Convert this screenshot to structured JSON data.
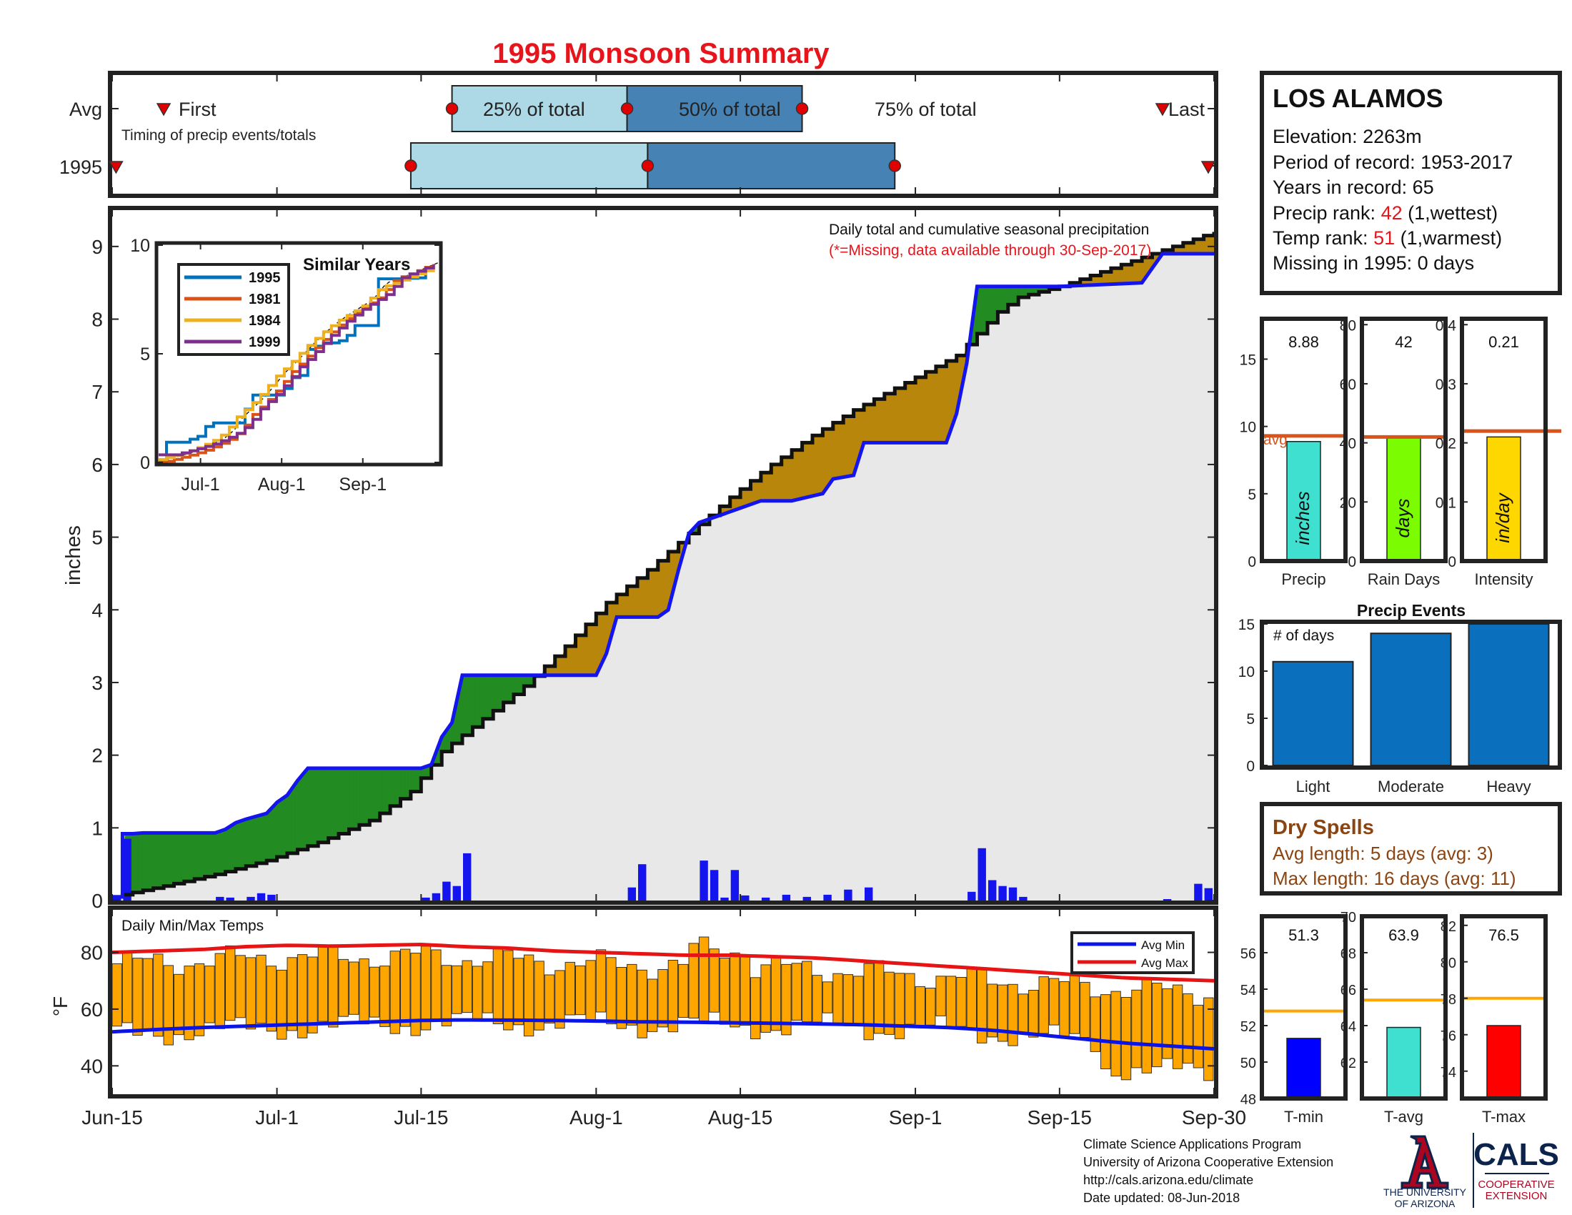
{
  "title": "1995 Monsoon Summary",
  "colors": {
    "title": "#e8141c",
    "precip_blue": "#1414ee",
    "green_fill": "#228b22",
    "brown_fill": "#b8860b",
    "gray_fill": "#e8e8e8",
    "light_box": "#add8e6",
    "dark_box": "#4682b4",
    "marker": "#e00000",
    "avg_line": "#d9541a",
    "temp_bar": "#ffa500",
    "avg_min": "#0a14e6",
    "avg_max": "#e61414",
    "bar_blue": "#0a6fbd"
  },
  "timing": {
    "row_avg": "Avg",
    "row_year": "1995",
    "first": "First",
    "last": "Last",
    "p25": "25% of total",
    "p50": "50% of total",
    "p75": "75% of total",
    "subtitle": "Timing of precip events/totals",
    "avg_first_day": 5,
    "avg_last_day": 102,
    "avg_q": [
      33,
      50,
      67
    ],
    "yr_first_day": 1,
    "yr_last_day": 107,
    "yr_q": [
      29,
      52,
      76
    ]
  },
  "station": {
    "name": "LOS ALAMOS",
    "elevation": "Elevation: 2263m",
    "period": "Period of record: 1953-2017",
    "years": "Years in record: 65",
    "precip_rank_label": "Precip rank: ",
    "precip_rank_value": "42",
    "precip_rank_note": " (1,wettest)",
    "temp_rank_label": "Temp rank: ",
    "temp_rank_value": "51",
    "temp_rank_note": " (1,warmest)",
    "missing": "Missing in 1995: 0 days"
  },
  "main": {
    "note1": "Daily total and cumulative seasonal precipitation",
    "note2": "(*=Missing, data available through 30-Sep-2017)",
    "ylabel": "inches",
    "xticks": [
      "Jun-15",
      "Jul-1",
      "Jul-15",
      "Aug-1",
      "Aug-15",
      "Sep-1",
      "Sep-15",
      "Sep-30"
    ],
    "xtick_days": [
      0,
      16,
      30,
      47,
      61,
      78,
      92,
      107
    ],
    "yticks": [
      0,
      1,
      2,
      3,
      4,
      5,
      6,
      7,
      8,
      9
    ],
    "ylim": [
      0,
      9.5
    ]
  },
  "inset": {
    "title": "Similar Years",
    "yticks": [
      "0",
      "5",
      "10"
    ],
    "xticks": [
      "Jul-1",
      "Aug-1",
      "Sep-1"
    ],
    "legend": [
      {
        "name": "1995",
        "color": "#0072bd"
      },
      {
        "name": "1981",
        "color": "#d95319"
      },
      {
        "name": "1984",
        "color": "#edb120"
      },
      {
        "name": "1999",
        "color": "#7e2f8e"
      }
    ]
  },
  "stats_bars": [
    {
      "label": "Precip",
      "value": "8.88",
      "unit": "inches",
      "color": "#40e0d0",
      "ymax": 18,
      "ticks": [
        "0",
        "5",
        "10",
        "15"
      ],
      "tickvals": [
        0,
        5,
        10,
        15
      ],
      "avg": 9.3,
      "bar": 8.88,
      "avg_label": "avg"
    },
    {
      "label": "Rain Days",
      "value": "42",
      "unit": "days",
      "color": "#7cfc00",
      "ymax": 82,
      "ticks": [
        "0",
        "20",
        "40",
        "60",
        "80"
      ],
      "tickvals": [
        0,
        20,
        40,
        60,
        80
      ],
      "avg": 42,
      "bar": 42,
      "avg_label": ""
    },
    {
      "label": "Intensity",
      "value": "0.21",
      "unit": "in/day",
      "color": "#ffd700",
      "ymax": 0.41,
      "ticks": [
        "0",
        "0.1",
        "0.2",
        "0.3",
        "0.4"
      ],
      "tickvals": [
        0,
        0.1,
        0.2,
        0.3,
        0.4
      ],
      "avg": 0.22,
      "bar": 0.21,
      "avg_label": ""
    }
  ],
  "events": {
    "title": "Precip Events",
    "ylabel_note": "# of days",
    "categories": [
      "Light",
      "Moderate",
      "Heavy"
    ],
    "values": [
      11,
      14,
      15
    ],
    "yticks": [
      "0",
      "5",
      "10",
      "15"
    ],
    "ylim": [
      0,
      15
    ]
  },
  "dry": {
    "title": "Dry Spells",
    "avg_len": "Avg length: 5 days (avg: 3)",
    "max_len": "Max length: 16 days (avg: 11)"
  },
  "temps": {
    "title": "Daily Min/Max Temps",
    "ylabel": "°F",
    "yticks": [
      "40",
      "60",
      "80"
    ],
    "legend_min": "Avg Min",
    "legend_max": "Avg Max"
  },
  "temp_stats": [
    {
      "label": "T-min",
      "value": "51.3",
      "color": "#0000ff",
      "ymin": 48,
      "ymax": 58,
      "ticks": [
        "48",
        "50",
        "52",
        "54",
        "56"
      ],
      "tickvals": [
        48,
        50,
        52,
        54,
        56
      ],
      "avg": 52.8,
      "bar": 51.3
    },
    {
      "label": "T-avg",
      "value": "63.9",
      "color": "#40e0d0",
      "ymin": 60,
      "ymax": 70,
      "ticks": [
        "62",
        "64",
        "66",
        "68",
        "70"
      ],
      "tickvals": [
        62,
        64,
        66,
        68,
        70
      ],
      "avg": 65.4,
      "bar": 63.9
    },
    {
      "label": "T-max",
      "value": "76.5",
      "color": "#ff0000",
      "ymin": 72.5,
      "ymax": 82.5,
      "ticks": [
        "74",
        "76",
        "78",
        "80",
        "82"
      ],
      "tickvals": [
        74,
        76,
        78,
        80,
        82
      ],
      "avg": 78.0,
      "bar": 76.5
    }
  ],
  "footer": {
    "line1": "Climate Science Applications Program",
    "line2": "University of Arizona Cooperative Extension",
    "line3": "http://cals.arizona.edu/climate",
    "line4": " Date updated: 08-Jun-2018",
    "ua1": "THE UNIVERSITY",
    "ua2": "OF ARIZONA",
    "cals": "CALS",
    "coop1": "COOPERATIVE",
    "coop2": "EXTENSION"
  },
  "chart_data": {
    "type": "line",
    "title": "1995 Monsoon Summary",
    "xlabel": "",
    "ylabel": "inches",
    "x_range": [
      "Jun-15",
      "Sep-30"
    ],
    "ylim": [
      0,
      9.5
    ],
    "cum_1995_points": [
      [
        0,
        0.05
      ],
      [
        1,
        0.05
      ],
      [
        1,
        0.92
      ],
      [
        2,
        0.92
      ],
      [
        3,
        0.93
      ],
      [
        10,
        0.93
      ],
      [
        11,
        0.98
      ],
      [
        12,
        1.07
      ],
      [
        13,
        1.12
      ],
      [
        15,
        1.2
      ],
      [
        16,
        1.35
      ],
      [
        17,
        1.45
      ],
      [
        18,
        1.65
      ],
      [
        19,
        1.82
      ],
      [
        30,
        1.82
      ],
      [
        31,
        1.87
      ],
      [
        32,
        2.25
      ],
      [
        33,
        2.45
      ],
      [
        34,
        3.1
      ],
      [
        42,
        3.1
      ],
      [
        47,
        3.1
      ],
      [
        48,
        3.4
      ],
      [
        49,
        3.9
      ],
      [
        53,
        3.9
      ],
      [
        54,
        4.0
      ],
      [
        55,
        4.55
      ],
      [
        56,
        5.05
      ],
      [
        57,
        5.2
      ],
      [
        59,
        5.3
      ],
      [
        61,
        5.4
      ],
      [
        63,
        5.5
      ],
      [
        66,
        5.5
      ],
      [
        69,
        5.6
      ],
      [
        70,
        5.8
      ],
      [
        72,
        5.85
      ],
      [
        73,
        6.3
      ],
      [
        81,
        6.3
      ],
      [
        82,
        6.7
      ],
      [
        83,
        7.4
      ],
      [
        84,
        8.45
      ],
      [
        92,
        8.45
      ],
      [
        100,
        8.5
      ],
      [
        101,
        8.7
      ],
      [
        102,
        8.9
      ],
      [
        107,
        8.9
      ]
    ],
    "cum_avg_points": [
      [
        0,
        0.05
      ],
      [
        5,
        0.2
      ],
      [
        10,
        0.36
      ],
      [
        15,
        0.55
      ],
      [
        20,
        0.8
      ],
      [
        25,
        1.1
      ],
      [
        29,
        1.5
      ],
      [
        32,
        2.05
      ],
      [
        36,
        2.5
      ],
      [
        40,
        2.95
      ],
      [
        44,
        3.5
      ],
      [
        48,
        4.1
      ],
      [
        52,
        4.55
      ],
      [
        56,
        5.05
      ],
      [
        60,
        5.55
      ],
      [
        64,
        6.0
      ],
      [
        68,
        6.4
      ],
      [
        72,
        6.75
      ],
      [
        76,
        7.05
      ],
      [
        80,
        7.35
      ],
      [
        82,
        7.5
      ],
      [
        84,
        7.8
      ],
      [
        86,
        8.1
      ],
      [
        88,
        8.3
      ],
      [
        92,
        8.45
      ],
      [
        96,
        8.65
      ],
      [
        100,
        8.85
      ],
      [
        104,
        9.05
      ],
      [
        107,
        9.2
      ]
    ],
    "daily_precip": [
      [
        0,
        0.03
      ],
      [
        1,
        0.85
      ],
      [
        10,
        0.05
      ],
      [
        11,
        0.04
      ],
      [
        13,
        0.05
      ],
      [
        14,
        0.1
      ],
      [
        15,
        0.08
      ],
      [
        30,
        0.04
      ],
      [
        31,
        0.1
      ],
      [
        32,
        0.26
      ],
      [
        33,
        0.2
      ],
      [
        34,
        0.65
      ],
      [
        50,
        0.18
      ],
      [
        51,
        0.5
      ],
      [
        57,
        0.55
      ],
      [
        58,
        0.42
      ],
      [
        59,
        0.04
      ],
      [
        60,
        0.42
      ],
      [
        61,
        0.07
      ],
      [
        63,
        0.04
      ],
      [
        65,
        0.08
      ],
      [
        67,
        0.05
      ],
      [
        69,
        0.08
      ],
      [
        71,
        0.15
      ],
      [
        73,
        0.18
      ],
      [
        83,
        0.12
      ],
      [
        84,
        0.72
      ],
      [
        85,
        0.28
      ],
      [
        86,
        0.2
      ],
      [
        87,
        0.18
      ],
      [
        88,
        0.05
      ],
      [
        102,
        0.02
      ],
      [
        105,
        0.23
      ],
      [
        106,
        0.17
      ]
    ],
    "temp_avg_max": [
      80,
      80.5,
      81,
      82,
      82.5,
      82.2,
      82.5,
      82.8,
      82,
      81.5,
      80.5,
      80,
      79.5,
      79,
      79,
      78.5,
      78,
      77,
      76,
      75,
      74,
      73,
      72,
      71,
      70.5,
      70
    ],
    "temp_avg_min": [
      52,
      52.8,
      53.5,
      54,
      54.5,
      55,
      55.5,
      56,
      56.2,
      56.1,
      56,
      55.8,
      55.5,
      55.4,
      55.2,
      55,
      54.8,
      54.5,
      54,
      53.5,
      52.5,
      51,
      49.5,
      48,
      47,
      46
    ],
    "similar_years": [
      "1995",
      "1981",
      "1984",
      "1999"
    ]
  }
}
